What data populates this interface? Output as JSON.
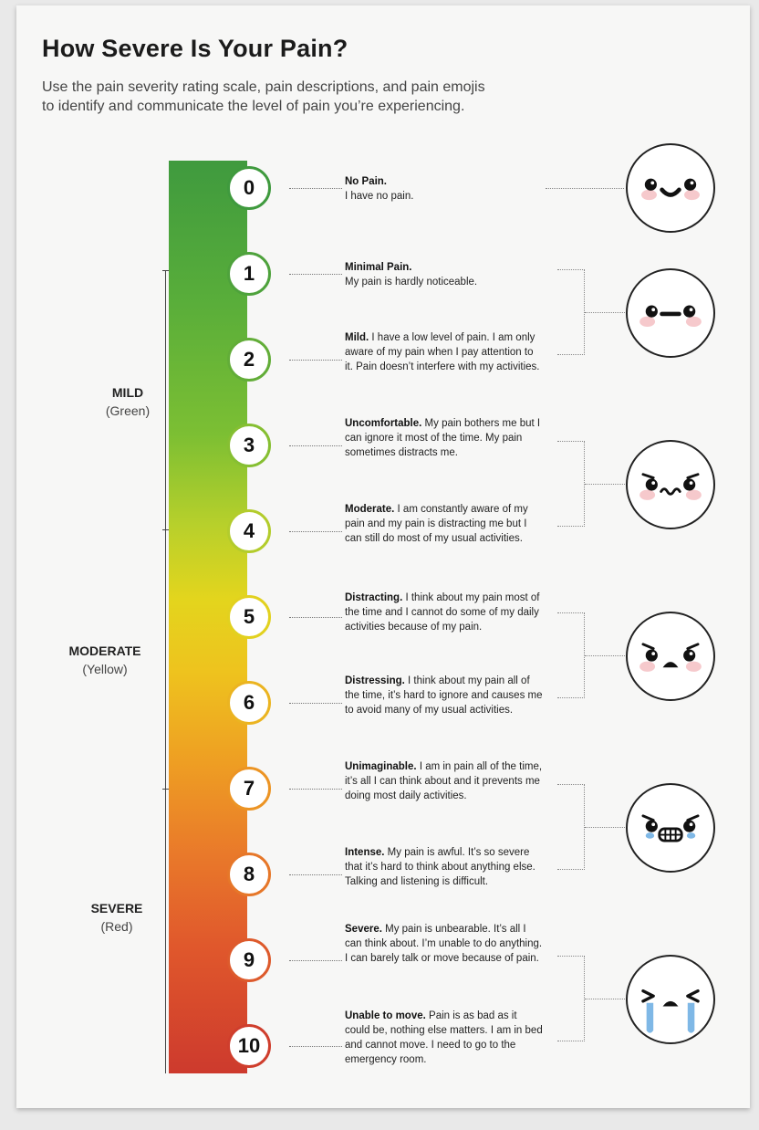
{
  "title": "How Severe Is Your Pain?",
  "subtitle_line1": "Use the pain severity rating scale, pain descriptions, and pain emojis",
  "subtitle_line2": "to identify and communicate the level of pain you’re experiencing.",
  "severity_levels": [
    {
      "name": "MILD",
      "color_word": "(Green)"
    },
    {
      "name": "MODERATE",
      "color_word": "(Yellow)"
    },
    {
      "name": "SEVERE",
      "color_word": "(Red)"
    }
  ],
  "scale": [
    {
      "number": "0",
      "title": "No Pain.",
      "text": "I have no pain.",
      "ring_color": "#3f9a3e"
    },
    {
      "number": "1",
      "title": "Minimal Pain.",
      "text": "My pain is hardly noticeable.",
      "ring_color": "#4ea23c"
    },
    {
      "number": "2",
      "title": "Mild.",
      "text": "I have a low level of pain. I am only aware of my pain when I pay attention to it. Pain doesn’t interfere with my activities.",
      "ring_color": "#62ad38"
    },
    {
      "number": "3",
      "title": "Uncomfortable.",
      "text": "My pain bothers me but I can ignore it most of the time. My pain sometimes distracts me.",
      "ring_color": "#86bf32"
    },
    {
      "number": "4",
      "title": "Moderate.",
      "text": "I am constantly aware of my pain  and my pain is distracting me but I can still do most of my usual activities.",
      "ring_color": "#b3cc2c"
    },
    {
      "number": "5",
      "title": "Distracting.",
      "text": "I think about my pain most of the time and I cannot do some of my daily activities because of my pain.",
      "ring_color": "#e2d11f"
    },
    {
      "number": "6",
      "title": "Distressing.",
      "text": "I think about my pain all of the time, it’s hard to ignore and causes me to avoid many of my usual activities.",
      "ring_color": "#ebb421"
    },
    {
      "number": "7",
      "title": "Unimaginable.",
      "text": "I am in pain all of the time, it’s all I can think about and it prevents me doing most daily activities.",
      "ring_color": "#ec9424"
    },
    {
      "number": "8",
      "title": "Intense.",
      "text": "My pain is awful. It’s so severe that it’s hard to think about anything else. Talking and listening is difficult.",
      "ring_color": "#e67729"
    },
    {
      "number": "9",
      "title": "Severe.",
      "text": "My pain is unbearable. It’s all I can think about. I’m unable to do anything. I can barely talk or move because of pain.",
      "ring_color": "#dd5a2c"
    },
    {
      "number": "10",
      "title": "Unable to move.",
      "text": "Pain is as bad as it could be, nothing else matters. I am in bed and cannot move. I need to go to the emergency room.",
      "ring_color": "#cf3e2d"
    }
  ],
  "emojis": [
    {
      "icon": "happy-face-icon"
    },
    {
      "icon": "neutral-face-icon"
    },
    {
      "icon": "uneasy-face-icon"
    },
    {
      "icon": "sad-face-icon"
    },
    {
      "icon": "grimacing-crying-face-icon"
    },
    {
      "icon": "sobbing-face-icon"
    }
  ]
}
